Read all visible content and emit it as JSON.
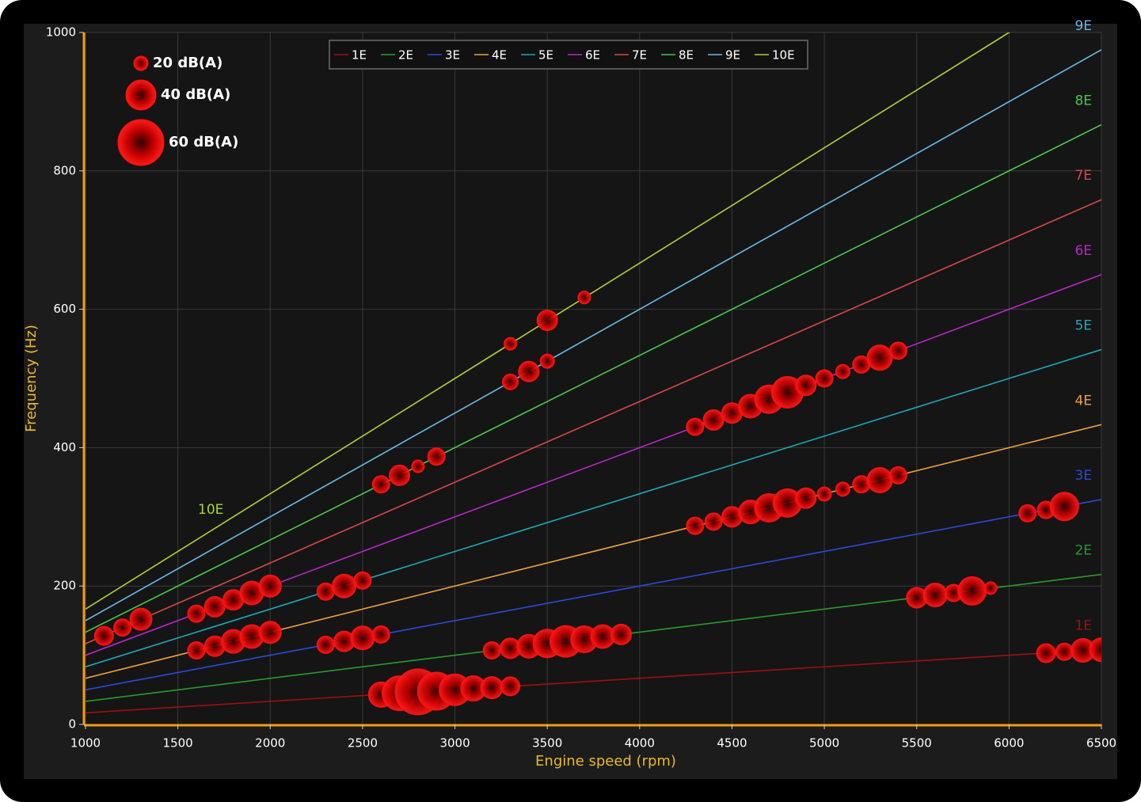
{
  "chart_data": {
    "type": "order-bubble",
    "xlabel": "Engine speed (rpm)",
    "ylabel": "Frequency (Hz)",
    "xlim": [
      1000,
      6500
    ],
    "ylim": [
      0,
      1000
    ],
    "xticks": [
      1000,
      1500,
      2000,
      2500,
      3000,
      3500,
      4000,
      4500,
      5000,
      5500,
      6000,
      6500
    ],
    "yticks": [
      0,
      200,
      400,
      600,
      800,
      1000
    ],
    "grid": true,
    "x": [
      1000,
      6500
    ],
    "series": [
      {
        "name": "1E",
        "color": "#a01010",
        "values": [
          16.7,
          108.3
        ]
      },
      {
        "name": "2E",
        "color": "#2a9a2a",
        "values": [
          33.3,
          216.7
        ]
      },
      {
        "name": "3E",
        "color": "#2a4ad8",
        "values": [
          50,
          325
        ]
      },
      {
        "name": "4E",
        "color": "#f0a040",
        "values": [
          66.7,
          433.3
        ]
      },
      {
        "name": "5E",
        "color": "#20a8b8",
        "values": [
          83.3,
          541.7
        ]
      },
      {
        "name": "6E",
        "color": "#b828c8",
        "values": [
          100,
          650
        ]
      },
      {
        "name": "7E",
        "color": "#d84848",
        "values": [
          116.7,
          758.3
        ]
      },
      {
        "name": "8E",
        "color": "#48c848",
        "values": [
          133.3,
          866.7
        ]
      },
      {
        "name": "9E",
        "color": "#68b8e8",
        "values": [
          150,
          975
        ]
      },
      {
        "name": "10E",
        "color": "#b0d038",
        "values": [
          166.7,
          1083.3
        ]
      }
    ],
    "bubbles": {
      "color": "#ff1010",
      "x": [
        3300,
        3700,
        3500,
        3300,
        3400,
        3500,
        2600,
        2700,
        2800,
        2900,
        4300,
        4400,
        4500,
        4600,
        4700,
        4800,
        4900,
        5000,
        5100,
        5200,
        5300,
        5400,
        4300,
        4400,
        4500,
        4600,
        4700,
        4800,
        4900,
        5000,
        5100,
        5200,
        5300,
        5400,
        1100,
        1200,
        1300,
        1600,
        1700,
        1800,
        1900,
        2000,
        1600,
        1700,
        1800,
        1900,
        2000,
        2300,
        2400,
        2500,
        2300,
        2400,
        2500,
        2600,
        2600,
        2700,
        2800,
        2900,
        3000,
        3100,
        3200,
        3300,
        3200,
        3300,
        3400,
        3500,
        3600,
        3700,
        3800,
        3900,
        5500,
        5600,
        5700,
        5800,
        5900,
        6100,
        6200,
        6300,
        6200,
        6300,
        6400,
        6500
      ],
      "y": [
        550,
        617,
        584,
        495,
        510,
        525,
        347,
        360,
        373,
        387,
        430,
        440,
        450,
        460,
        470,
        480,
        490,
        500,
        510,
        520,
        530,
        540,
        287,
        293,
        300,
        307,
        313,
        320,
        327,
        333,
        340,
        347,
        353,
        360,
        128,
        140,
        152,
        160,
        170,
        180,
        190,
        200,
        107,
        113,
        120,
        127,
        133,
        192,
        200,
        208,
        115,
        120,
        125,
        130,
        43,
        45,
        47,
        48,
        50,
        52,
        53,
        55,
        107,
        110,
        113,
        117,
        120,
        123,
        127,
        130,
        183,
        187,
        190,
        193,
        197,
        305,
        310,
        315,
        103,
        105,
        107,
        108
      ],
      "size": [
        16,
        16,
        26,
        20,
        26,
        18,
        22,
        26,
        16,
        22,
        22,
        26,
        26,
        30,
        36,
        40,
        26,
        22,
        18,
        22,
        32,
        22,
        22,
        22,
        26,
        30,
        36,
        36,
        26,
        18,
        18,
        22,
        32,
        22,
        24,
        22,
        28,
        22,
        26,
        26,
        30,
        28,
        22,
        26,
        30,
        30,
        28,
        22,
        30,
        22,
        22,
        26,
        30,
        22,
        32,
        44,
        58,
        48,
        40,
        32,
        28,
        24,
        22,
        26,
        30,
        36,
        40,
        34,
        30,
        26,
        26,
        30,
        22,
        36,
        16,
        22,
        22,
        36,
        24,
        22,
        30,
        30
      ]
    },
    "size_legend": [
      {
        "value": 20,
        "label": "20 dB(A)"
      },
      {
        "value": 40,
        "label": "40 dB(A)"
      },
      {
        "value": 60,
        "label": "60 dB(A)"
      }
    ]
  }
}
